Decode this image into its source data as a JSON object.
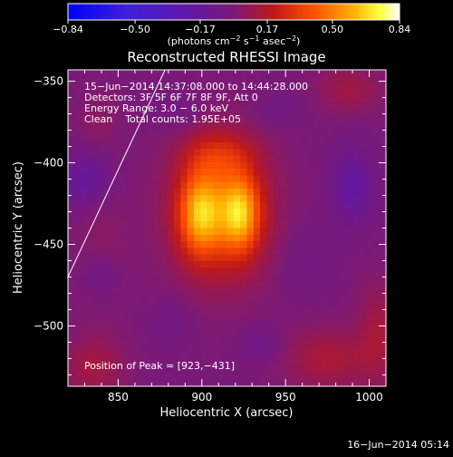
{
  "chart_data": {
    "type": "heatmap",
    "title": "Reconstructed RHESSI Image",
    "xlabel": "Heliocentric X (arcsec)",
    "ylabel": "Heliocentric Y (arcsec)",
    "xlim": [
      820,
      1010
    ],
    "ylim": [
      -537,
      -343
    ],
    "xticks": [
      850,
      900,
      950,
      1000
    ],
    "xtick_labels": [
      "850",
      "900",
      "950",
      "1000"
    ],
    "yticks": [
      -350,
      -400,
      -450,
      -500
    ],
    "ytick_labels": [
      "−350",
      "−400",
      "−450",
      "−500"
    ],
    "colorbar": {
      "range": [
        -0.84,
        0.84
      ],
      "ticks": [
        -0.84,
        -0.5,
        -0.17,
        0.17,
        0.5,
        0.84
      ],
      "tick_labels": [
        "−0.84",
        "−0.50",
        "−0.17",
        "0.17",
        "0.50",
        "0.84"
      ],
      "unit_text": "(photons cm",
      "unit_sup1": "−2",
      "unit_mid": " s",
      "unit_sup2": "−1",
      "unit_mid2": " asec",
      "unit_sup3": "−2",
      "unit_close": ")"
    },
    "annotations": [
      "15−Jun−2014 14:37:08.000 to 14:44:28.000",
      "Detectors: 3F 5F 6F 7F 8F 9F, Att 0",
      "Energy Range: 3.0 − 6.0 keV",
      "Clean    Total counts: 1.95E+05"
    ],
    "peak_label": "Position of Peak = [923,−431]",
    "peak": [
      923,
      -431
    ],
    "limb_line": [
      [
        820,
        -470
      ],
      [
        878,
        -343
      ]
    ],
    "sources": [
      {
        "x": 899,
        "y": -431,
        "sx": 12,
        "sy": 24,
        "amp": 0.4
      },
      {
        "x": 923,
        "y": -431,
        "sx": 11,
        "sy": 22,
        "amp": 0.42
      },
      {
        "x": 910,
        "y": -395,
        "sx": 20,
        "sy": 14,
        "amp": 0.16
      },
      {
        "x": 911,
        "y": -430,
        "sx": 28,
        "sy": 40,
        "amp": 0.35
      },
      {
        "x": 975,
        "y": -520,
        "sx": 25,
        "sy": 18,
        "amp": 0.14
      },
      {
        "x": 835,
        "y": -525,
        "sx": 18,
        "sy": 18,
        "amp": 0.12
      },
      {
        "x": 1005,
        "y": -505,
        "sx": 12,
        "sy": 30,
        "amp": 0.12
      },
      {
        "x": 988,
        "y": -355,
        "sx": 18,
        "sy": 14,
        "amp": 0.11
      },
      {
        "x": 840,
        "y": -455,
        "sx": 15,
        "sy": 40,
        "amp": 0.05
      },
      {
        "x": 838,
        "y": -375,
        "sx": 12,
        "sy": 18,
        "amp": 0.05
      },
      {
        "x": 830,
        "y": -410,
        "sx": 14,
        "sy": 16,
        "amp": -0.18
      },
      {
        "x": 840,
        "y": -470,
        "sx": 10,
        "sy": 14,
        "amp": -0.1
      },
      {
        "x": 990,
        "y": -415,
        "sx": 12,
        "sy": 22,
        "amp": -0.2
      },
      {
        "x": 945,
        "y": -367,
        "sx": 12,
        "sy": 10,
        "amp": -0.07
      },
      {
        "x": 885,
        "y": -368,
        "sx": 14,
        "sy": 12,
        "amp": -0.06
      },
      {
        "x": 882,
        "y": -498,
        "sx": 12,
        "sy": 14,
        "amp": -0.06
      },
      {
        "x": 935,
        "y": -512,
        "sx": 12,
        "sy": 10,
        "amp": -0.08
      },
      {
        "x": 962,
        "y": -460,
        "sx": 16,
        "sy": 22,
        "amp": -0.05
      }
    ],
    "grid": false
  },
  "footer_timestamp": "16−Jun−2014 05:14"
}
